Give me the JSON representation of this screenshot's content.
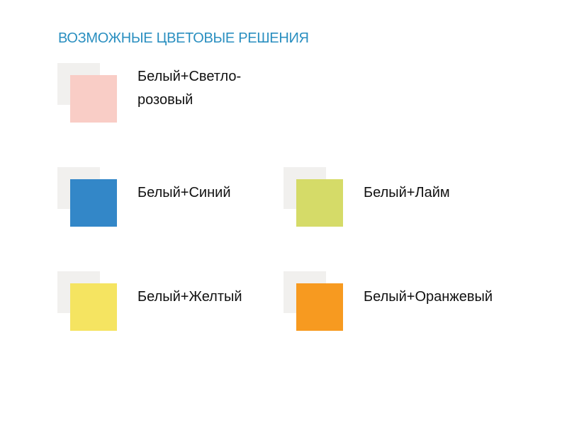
{
  "title": "ВОЗМОЖНЫЕ ЦВЕТОВЫЕ РЕШЕНИЯ",
  "colors": [
    {
      "label": "Белый+Светло-розовый",
      "line1": "Белый+Светло-",
      "line2": "розовый",
      "secondary": "#f1f0ee",
      "color": "#f9cdc6"
    },
    {
      "label": "Белый+Синий",
      "secondary": "#f1f0ee",
      "color": "#3387c8"
    },
    {
      "label": "Белый+Лайм",
      "secondary": "#f1f0ee",
      "color": "#d5db68"
    },
    {
      "label": "Белый+Желтый",
      "secondary": "#f1f0ee",
      "color": "#f5e461"
    },
    {
      "label": "Белый+Оранжевый",
      "secondary": "#f1f0ee",
      "color": "#f79a20"
    }
  ]
}
